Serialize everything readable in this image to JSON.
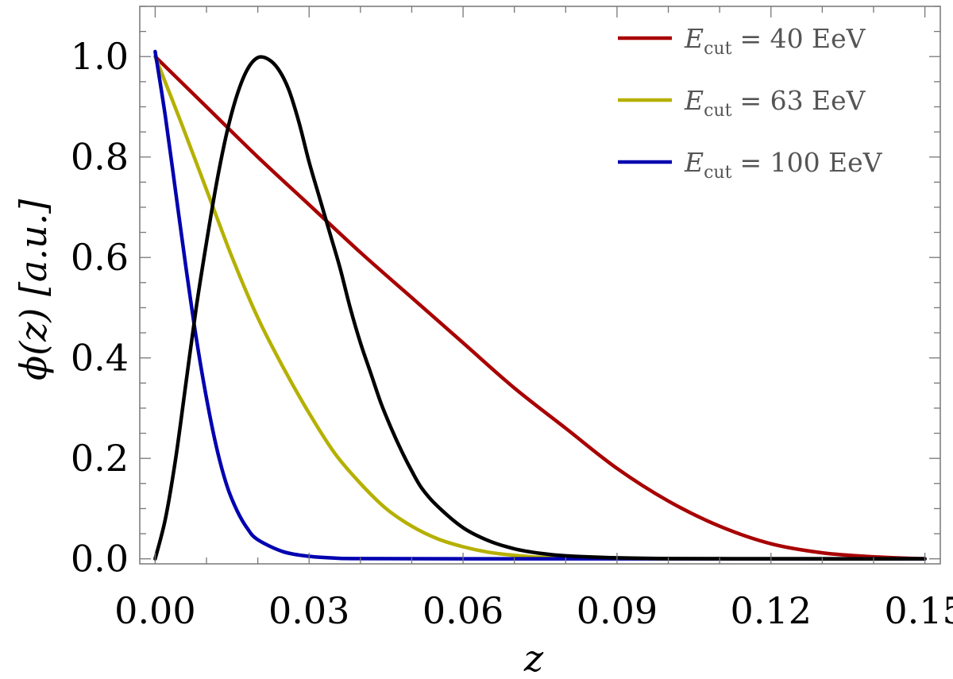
{
  "chart_data": {
    "type": "line",
    "xlabel": "z",
    "ylabel": "ϕ(z) [a.u.]",
    "xlim": [
      -0.003,
      0.153
    ],
    "ylim": [
      -0.01,
      1.1
    ],
    "xticks": [
      0.0,
      0.03,
      0.06,
      0.09,
      0.12,
      0.15
    ],
    "xtick_labels": [
      "0.00",
      "0.03",
      "0.06",
      "0.09",
      "0.12",
      "0.15"
    ],
    "yticks": [
      0.0,
      0.2,
      0.4,
      0.6,
      0.8,
      1.0
    ],
    "ytick_labels": [
      "0.0",
      "0.2",
      "0.4",
      "0.6",
      "0.8",
      "1.0"
    ],
    "legend_position": "top-right",
    "grid": false,
    "series": [
      {
        "name": "E_cut = 40 EeV",
        "legend_symbol": "E",
        "legend_subscript": "cut",
        "legend_value": "= 40 EeV",
        "color": "#a80000",
        "x": [
          0.0,
          0.01,
          0.02,
          0.03,
          0.04,
          0.05,
          0.06,
          0.07,
          0.08,
          0.09,
          0.1,
          0.11,
          0.12,
          0.13,
          0.14,
          0.15
        ],
        "y": [
          1.0,
          0.9,
          0.8,
          0.705,
          0.61,
          0.52,
          0.43,
          0.34,
          0.26,
          0.18,
          0.115,
          0.065,
          0.03,
          0.012,
          0.004,
          0.0
        ]
      },
      {
        "name": "E_cut = 63 EeV",
        "legend_symbol": "E",
        "legend_subscript": "cut",
        "legend_value": "= 63 EeV",
        "color": "#b5b000",
        "x": [
          0.0,
          0.005,
          0.01,
          0.015,
          0.02,
          0.025,
          0.03,
          0.035,
          0.04,
          0.045,
          0.05,
          0.055,
          0.06,
          0.065,
          0.07,
          0.075,
          0.08,
          0.09,
          0.1,
          0.12,
          0.15
        ],
        "y": [
          1.0,
          0.87,
          0.735,
          0.6,
          0.48,
          0.38,
          0.29,
          0.21,
          0.15,
          0.1,
          0.065,
          0.04,
          0.024,
          0.013,
          0.007,
          0.003,
          0.0015,
          0.0003,
          0.0,
          0.0,
          0.0
        ]
      },
      {
        "name": "E_cut = 100 EeV",
        "legend_symbol": "E",
        "legend_subscript": "cut",
        "legend_value": "= 100 EeV",
        "color": "#0000b0",
        "x": [
          0.0,
          0.002,
          0.004,
          0.006,
          0.008,
          0.01,
          0.012,
          0.014,
          0.016,
          0.018,
          0.02,
          0.025,
          0.03,
          0.035,
          0.04,
          0.06,
          0.1,
          0.15
        ],
        "y": [
          1.01,
          0.88,
          0.73,
          0.58,
          0.44,
          0.32,
          0.22,
          0.145,
          0.095,
          0.06,
          0.038,
          0.014,
          0.005,
          0.0015,
          0.0005,
          0.0,
          0.0,
          0.0
        ]
      },
      {
        "name": "",
        "color": "#000000",
        "x": [
          0.0,
          0.002,
          0.004,
          0.006,
          0.008,
          0.01,
          0.012,
          0.014,
          0.016,
          0.018,
          0.02,
          0.022,
          0.024,
          0.026,
          0.028,
          0.03,
          0.032,
          0.034,
          0.036,
          0.038,
          0.04,
          0.042,
          0.044,
          0.046,
          0.048,
          0.05,
          0.052,
          0.055,
          0.06,
          0.065,
          0.07,
          0.075,
          0.08,
          0.09,
          0.1,
          0.11,
          0.12,
          0.15
        ],
        "y": [
          0.0,
          0.08,
          0.2,
          0.35,
          0.5,
          0.63,
          0.75,
          0.85,
          0.925,
          0.975,
          0.998,
          0.995,
          0.975,
          0.935,
          0.87,
          0.79,
          0.72,
          0.65,
          0.58,
          0.5,
          0.43,
          0.37,
          0.31,
          0.26,
          0.215,
          0.175,
          0.14,
          0.105,
          0.062,
          0.036,
          0.02,
          0.011,
          0.006,
          0.002,
          0.0005,
          0.0002,
          0.0,
          0.0
        ]
      }
    ]
  }
}
